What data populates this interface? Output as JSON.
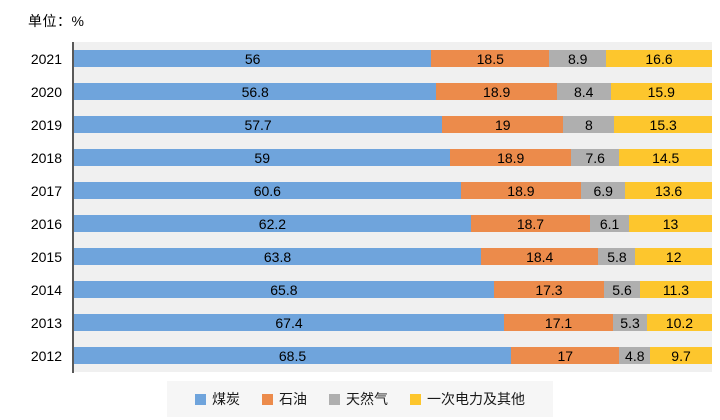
{
  "unit_label": "单位：%",
  "colors": {
    "coal": "#6FA4DC",
    "oil": "#EC8B4B",
    "gas": "#AFAFAF",
    "electricity": "#FDC62D",
    "plot_bg": "#F0F0F0",
    "axis": "#595959",
    "legend_bg": "#F6F6F6",
    "text": "#000000"
  },
  "chart_data": {
    "type": "bar",
    "orientation": "horizontal",
    "stacked": true,
    "title": "",
    "unit": "单位：%",
    "xlabel": "",
    "ylabel": "",
    "xlim": [
      0,
      100
    ],
    "grid": false,
    "value_labels": true,
    "legend_position": "bottom",
    "categories": [
      "2021",
      "2020",
      "2019",
      "2018",
      "2017",
      "2016",
      "2015",
      "2014",
      "2013",
      "2012"
    ],
    "series": [
      {
        "name": "煤炭",
        "key": "coal",
        "values": [
          56,
          56.8,
          57.7,
          59,
          60.6,
          62.2,
          63.8,
          65.8,
          67.4,
          68.5
        ]
      },
      {
        "name": "石油",
        "key": "oil",
        "values": [
          18.5,
          18.9,
          19,
          18.9,
          18.9,
          18.7,
          18.4,
          17.3,
          17.1,
          17
        ]
      },
      {
        "name": "天然气",
        "key": "gas",
        "values": [
          8.9,
          8.4,
          8,
          7.6,
          6.9,
          6.1,
          5.8,
          5.6,
          5.3,
          4.8
        ]
      },
      {
        "name": "一次电力及其他",
        "key": "electricity",
        "values": [
          16.6,
          15.9,
          15.3,
          14.5,
          13.6,
          13,
          12,
          11.3,
          10.2,
          9.7
        ]
      }
    ]
  }
}
